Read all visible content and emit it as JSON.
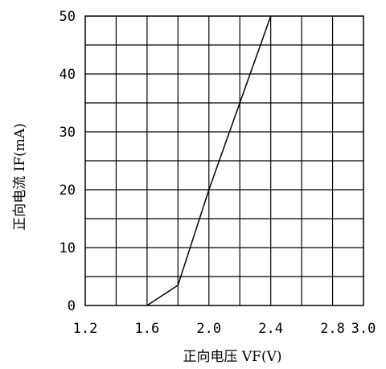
{
  "chart_data": {
    "type": "line",
    "xlabel": "正向电压 VF(V)",
    "ylabel": "正向电流 IF(mA)",
    "xlim": [
      1.2,
      3.0
    ],
    "ylim": [
      0,
      50
    ],
    "x_ticks": [
      "1.2",
      "1.6",
      "2.0",
      "2.4",
      "2.8",
      "3.0"
    ],
    "x_tick_values": [
      1.2,
      1.6,
      2.0,
      2.4,
      2.8,
      3.0
    ],
    "y_ticks": [
      "0",
      "10",
      "20",
      "30",
      "40",
      "50"
    ],
    "y_tick_values": [
      0,
      10,
      20,
      30,
      40,
      50
    ],
    "grid": true,
    "x_minor_step": 0.2,
    "y_minor_step": 5,
    "series": [
      {
        "x": [
          1.6,
          1.8,
          2.0,
          2.2,
          2.4
        ],
        "y": [
          0,
          3.5,
          20,
          35,
          50
        ],
        "color": "#000000"
      }
    ]
  }
}
